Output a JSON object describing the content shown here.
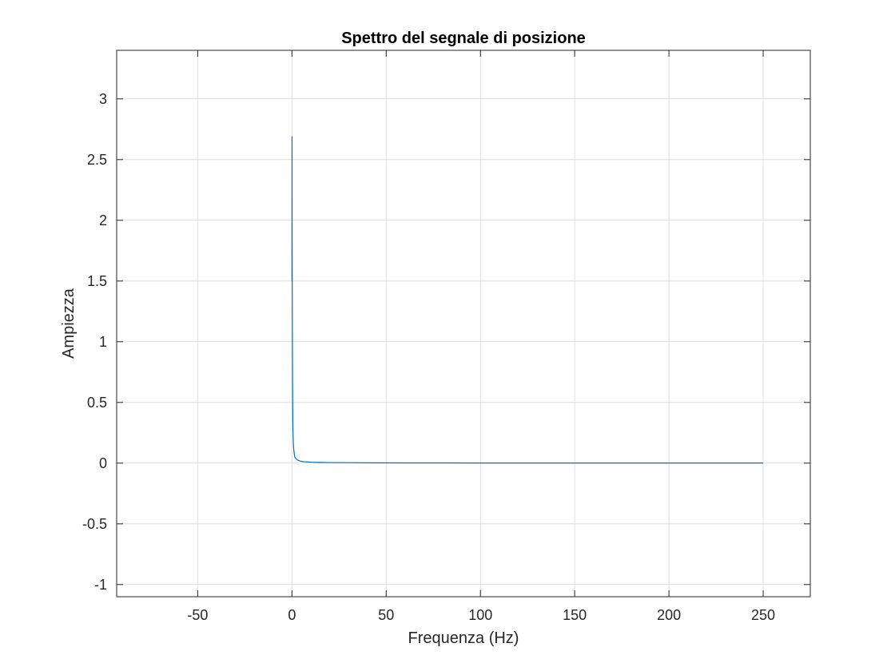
{
  "chart_data": {
    "type": "line",
    "title": "Spettro del segnale di posizione",
    "xlabel": "Frequenza (Hz)",
    "ylabel": "Ampiezza",
    "xlim": [
      -93,
      275
    ],
    "ylim": [
      -1.1,
      3.4
    ],
    "xticks": [
      -50,
      0,
      50,
      100,
      150,
      200,
      250
    ],
    "xtick_labels": [
      "-50",
      "0",
      "50",
      "100",
      "150",
      "200",
      "250"
    ],
    "yticks": [
      -1,
      -0.5,
      0,
      0.5,
      1,
      1.5,
      2,
      2.5,
      3
    ],
    "ytick_labels": [
      "-1",
      "-0.5",
      "0",
      "0.5",
      "1",
      "1.5",
      "2",
      "2.5",
      "3"
    ],
    "grid": true,
    "series": [
      {
        "color": "#0072bd",
        "x": [
          0,
          0.05,
          0.1,
          0.2,
          0.3,
          0.4,
          0.5,
          0.7,
          0.9,
          1.2,
          1.5,
          2,
          3,
          4,
          5,
          6,
          8,
          10,
          15,
          20,
          30,
          40,
          60,
          80,
          100,
          150,
          200,
          250
        ],
        "y": [
          1.5,
          2.69,
          1.8,
          1.1,
          0.7,
          0.45,
          0.3,
          0.18,
          0.12,
          0.08,
          0.05,
          0.04,
          0.025,
          0.02,
          0.015,
          0.012,
          0.01,
          0.008,
          0.006,
          0.005,
          0.004,
          0.003,
          0.002,
          0.002,
          0.001,
          0.001,
          0.001,
          0.001
        ]
      }
    ]
  }
}
